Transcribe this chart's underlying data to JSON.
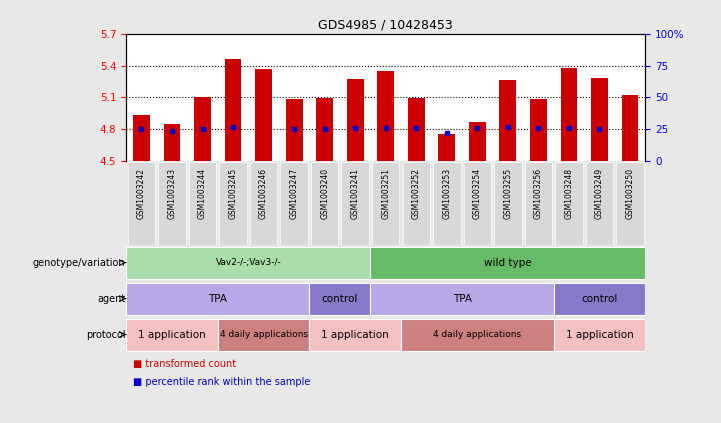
{
  "title": "GDS4985 / 10428453",
  "samples": [
    "GSM1003242",
    "GSM1003243",
    "GSM1003244",
    "GSM1003245",
    "GSM1003246",
    "GSM1003247",
    "GSM1003240",
    "GSM1003241",
    "GSM1003251",
    "GSM1003252",
    "GSM1003253",
    "GSM1003254",
    "GSM1003255",
    "GSM1003256",
    "GSM1003248",
    "GSM1003249",
    "GSM1003250"
  ],
  "red_values": [
    4.93,
    4.85,
    5.1,
    5.46,
    5.37,
    5.08,
    5.09,
    5.27,
    5.35,
    5.09,
    4.75,
    4.87,
    5.26,
    5.08,
    5.38,
    5.28,
    5.12
  ],
  "blue_values": [
    4.8,
    4.78,
    4.8,
    4.82,
    null,
    4.8,
    4.8,
    4.81,
    4.81,
    4.81,
    4.76,
    4.81,
    4.82,
    4.81,
    4.81,
    4.8,
    null
  ],
  "ylim_left": [
    4.5,
    5.7
  ],
  "ylim_right": [
    0,
    100
  ],
  "yticks_left": [
    4.5,
    4.8,
    5.1,
    5.4,
    5.7
  ],
  "yticks_right": [
    0,
    25,
    50,
    75,
    100
  ],
  "hlines": [
    4.8,
    5.1,
    5.4
  ],
  "bar_color": "#cc0000",
  "dot_color": "#0000cc",
  "bg_color": "#e8e8e8",
  "plot_bg": "#ffffff",
  "genotype_blocks": [
    {
      "label": "Vav2-/-;Vav3-/-",
      "start": 0,
      "end": 8,
      "color": "#aaddaa"
    },
    {
      "label": "wild type",
      "start": 8,
      "end": 17,
      "color": "#66bb66"
    }
  ],
  "agent_blocks": [
    {
      "label": "TPA",
      "start": 0,
      "end": 6,
      "color": "#b8a8e8"
    },
    {
      "label": "control",
      "start": 6,
      "end": 8,
      "color": "#8878c8"
    },
    {
      "label": "TPA",
      "start": 8,
      "end": 14,
      "color": "#b8a8e8"
    },
    {
      "label": "control",
      "start": 14,
      "end": 17,
      "color": "#8878c8"
    }
  ],
  "protocol_blocks": [
    {
      "label": "1 application",
      "start": 0,
      "end": 3,
      "color": "#f4c0c0"
    },
    {
      "label": "4 daily applications",
      "start": 3,
      "end": 6,
      "color": "#cc8080"
    },
    {
      "label": "1 application",
      "start": 6,
      "end": 9,
      "color": "#f4c0c0"
    },
    {
      "label": "4 daily applications",
      "start": 9,
      "end": 14,
      "color": "#cc8080"
    },
    {
      "label": "1 application",
      "start": 14,
      "end": 17,
      "color": "#f4c0c0"
    }
  ],
  "row_labels": [
    "genotype/variation",
    "agent",
    "protocol"
  ],
  "legend_red": "transformed count",
  "legend_blue": "percentile rank within the sample"
}
